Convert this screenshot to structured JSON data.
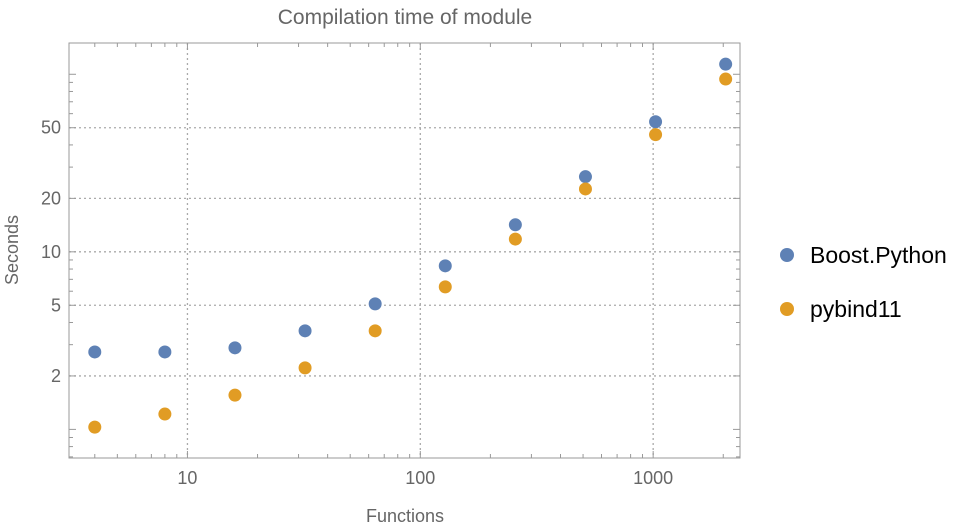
{
  "chart_data": {
    "type": "scatter",
    "title": "Compilation time of module",
    "xlabel": "Functions",
    "ylabel": "Seconds",
    "x_scale": "log",
    "y_scale": "log",
    "xlim": [
      3.1,
      2360
    ],
    "ylim": [
      0.69,
      150
    ],
    "grid": true,
    "legend_position": "right",
    "x_ticks": [
      10,
      100,
      1000
    ],
    "x_tick_labels": [
      "10",
      "100",
      "1000"
    ],
    "y_ticks": [
      2,
      5,
      10,
      20,
      50
    ],
    "y_tick_labels": [
      "2",
      "5",
      "10",
      "20",
      "50"
    ],
    "x": [
      4,
      8,
      16,
      32,
      64,
      128,
      256,
      512,
      1024,
      2048
    ],
    "series": [
      {
        "name": "Boost.Python",
        "color": "#5E81B5",
        "values": [
          2.73,
          2.73,
          2.88,
          3.59,
          5.09,
          8.34,
          14.2,
          26.5,
          54,
          114
        ]
      },
      {
        "name": "pybind11",
        "color": "#E19C24",
        "values": [
          1.03,
          1.22,
          1.56,
          2.22,
          3.59,
          6.35,
          11.8,
          22.6,
          45.7,
          94
        ]
      }
    ]
  }
}
